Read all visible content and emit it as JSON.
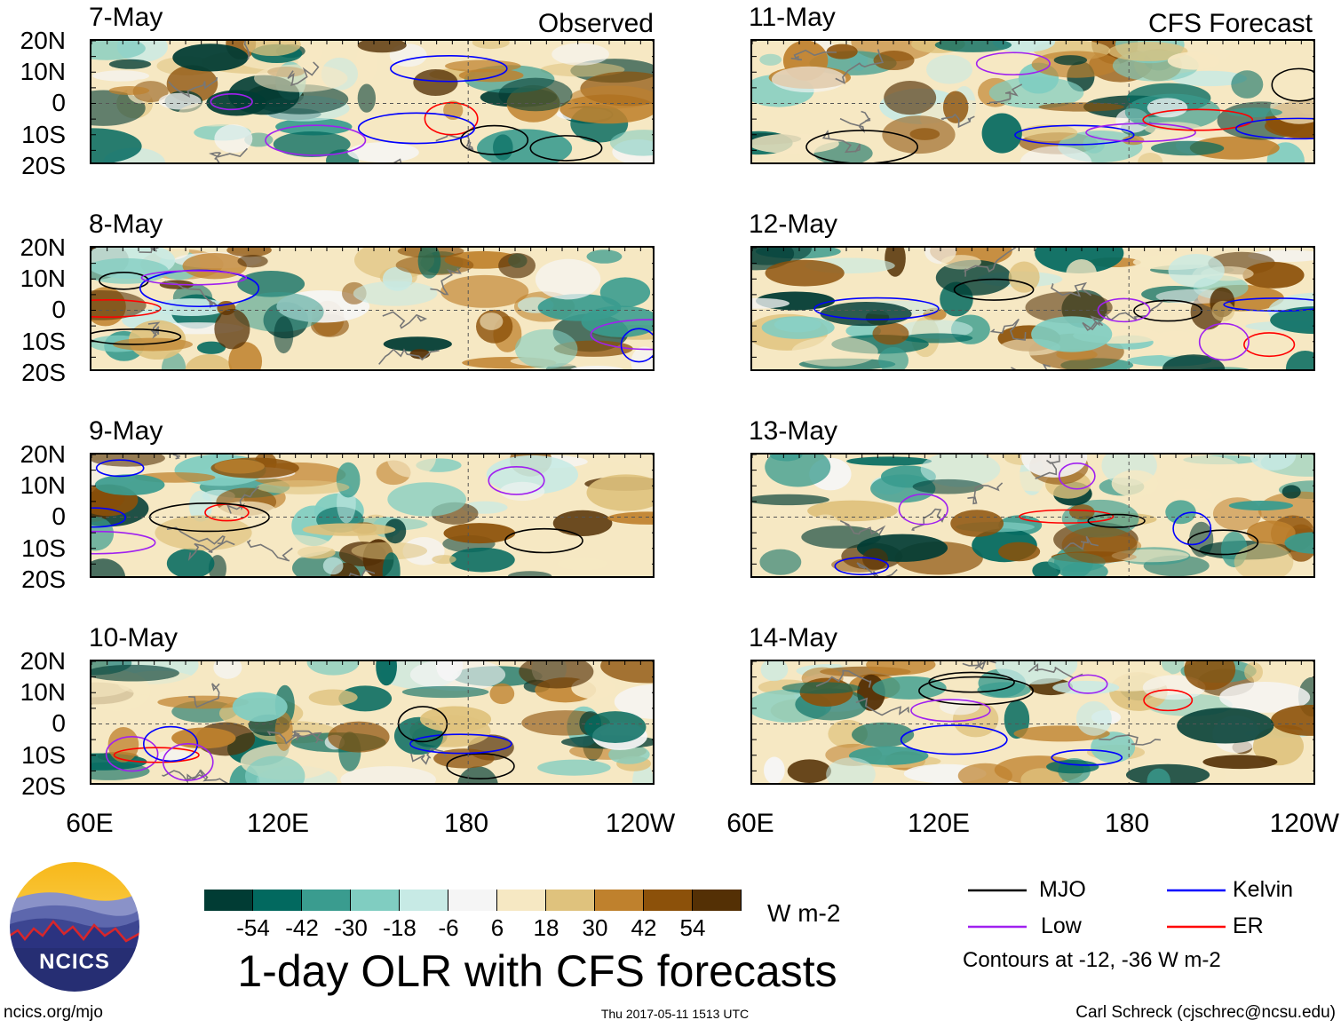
{
  "headers": {
    "observed": "Observed",
    "forecast": "CFS Forecast"
  },
  "observed_panels": [
    {
      "date": "7-May"
    },
    {
      "date": "8-May"
    },
    {
      "date": "9-May"
    },
    {
      "date": "10-May"
    }
  ],
  "forecast_panels": [
    {
      "date": "11-May"
    },
    {
      "date": "12-May"
    },
    {
      "date": "13-May"
    },
    {
      "date": "14-May"
    }
  ],
  "lat_labels": [
    "20N",
    "10N",
    "0",
    "10S",
    "20S"
  ],
  "lon_labels": [
    "60E",
    "120E",
    "180",
    "120W"
  ],
  "colorbar": {
    "colors": [
      "#013c34",
      "#02695f",
      "#3a9c8f",
      "#80cdc1",
      "#c7eae5",
      "#f5f5f5",
      "#f6e8c3",
      "#dfc27d",
      "#bf812d",
      "#8c510a",
      "#543005"
    ],
    "labels": [
      "-54",
      "-42",
      "-30",
      "-18",
      "-6",
      "6",
      "18",
      "30",
      "42",
      "54"
    ],
    "units": "W m-2"
  },
  "title": "1-day OLR with CFS forecasts",
  "legend": {
    "items": [
      {
        "label": "MJO",
        "color": "#000000"
      },
      {
        "label": "Kelvin",
        "color": "#0000ff"
      },
      {
        "label": "Low",
        "color": "#a020f0"
      },
      {
        "label": "ER",
        "color": "#ff0000"
      }
    ],
    "note": "Contours at -12, -36 W m-2"
  },
  "logo_text": "NCICS",
  "footer": {
    "left": "ncics.org/mjo",
    "center": "Thu 2017-05-11 1513 UTC",
    "right": "Carl Schreck (cjschrec@ncsu.edu)"
  }
}
